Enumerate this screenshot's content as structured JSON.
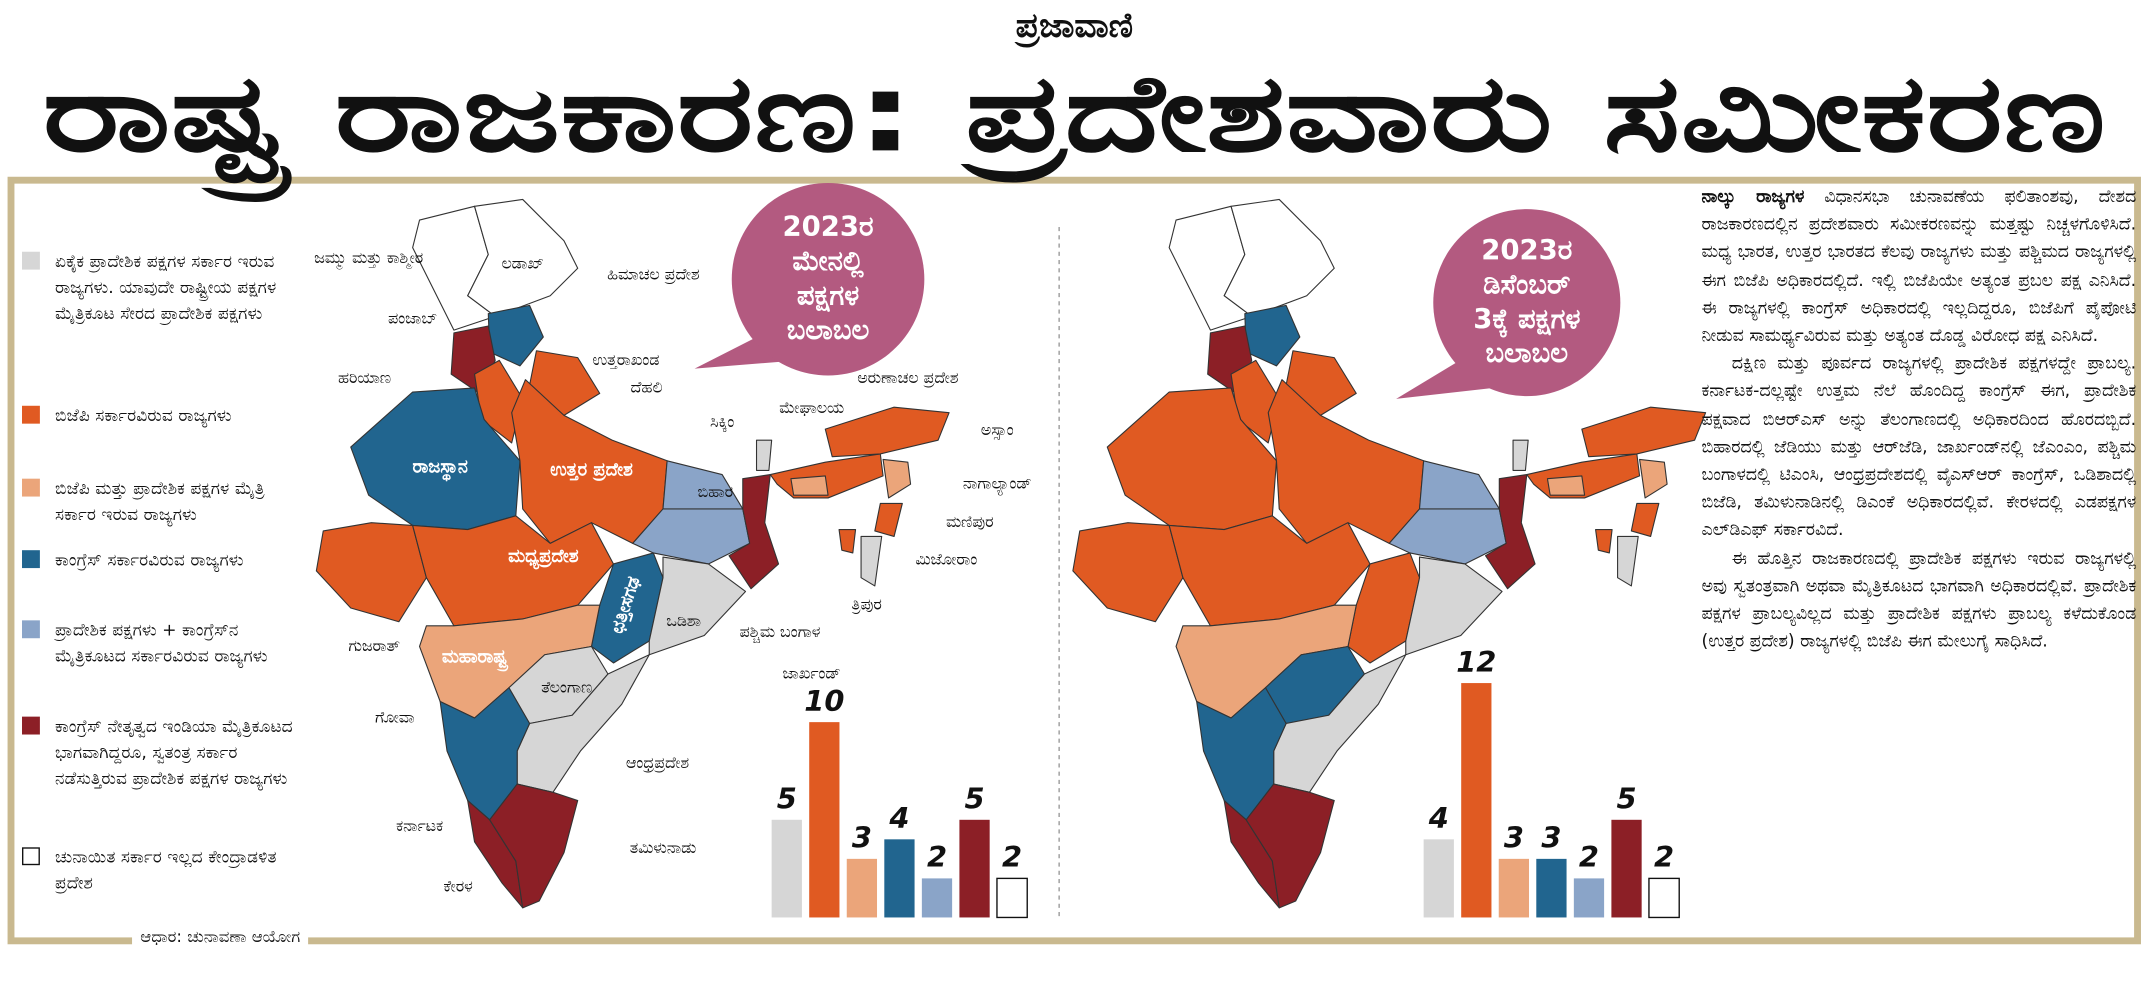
{
  "header": {
    "masthead": "ಪ್ರಜಾವಾಣಿ",
    "title": "ರಾಷ್ಟ್ರ ರಾಜಕಾರಣ: ಪ್ರದೇಶವಾರು ಸಮೀಕರಣ"
  },
  "legend": [
    "ಏಕೈಕ ಪ್ರಾದೇಶಿಕ ಪಕ್ಷಗಳ ಸರ್ಕಾರ ಇರುವ ರಾಜ್ಯಗಳು. ಯಾವುದೇ ರಾಷ್ಟ್ರೀಯ ಪಕ್ಷಗಳ ಮೈತ್ರಿಕೂಟ ಸೇರದ ಪ್ರಾದೇಶಿಕ ಪಕ್ಷಗಳು",
    "ಬಿಜೆಪಿ ಸರ್ಕಾರವಿರುವ ರಾಜ್ಯಗಳು",
    "ಬಿಜೆಪಿ ಮತ್ತು ಪ್ರಾದೇಶಿಕ ಪಕ್ಷಗಳ ಮೈತ್ರಿ ಸರ್ಕಾರ ಇರುವ ರಾಜ್ಯಗಳು",
    "ಕಾಂಗ್ರೆಸ್ ಸರ್ಕಾರವಿರುವ ರಾಜ್ಯಗಳು",
    "ಪ್ರಾದೇಶಿಕ ಪಕ್ಷಗಳು + ಕಾಂಗ್ರೆಸ್‌ನ ಮೈತ್ರಿಕೂಟದ ಸರ್ಕಾರವಿರುವ ರಾಜ್ಯಗಳು",
    "ಕಾಂಗ್ರೆಸ್ ನೇತೃತ್ವದ ಇಂಡಿಯಾ ಮೈತ್ರಿಕೂಟದ ಭಾಗವಾಗಿದ್ದರೂ, ಸ್ವತಂತ್ರ ಸರ್ಕಾರ ನಡೆಸುತ್ತಿರುವ ಪ್ರಾದೇಶಿಕ ಪಕ್ಷಗಳ ರಾಜ್ಯಗಳು",
    "ಚುನಾಯಿತ ಸರ್ಕಾರ ಇಲ್ಲದ ಕೇಂದ್ರಾಡಳಿತ ಪ್ರದೇಶ"
  ],
  "maps": [
    {
      "bubble": [
        "2023ರ",
        "ಮೇನಲ್ಲಿ",
        "ಪಕ್ಷಗಳ",
        "ಬಲಾಬಲ"
      ],
      "labels": [
        "ಲಡಾಖ್",
        "ಜಮ್ಮು ಮತ್ತು ಕಾಶ್ಮೀರ",
        "ಹಿಮಾಚಲ ಪ್ರದೇಶ",
        "ಪಂಜಾಬ್",
        "ಉತ್ತರಾಖಂಡ",
        "ಹರಿಯಾಣ",
        "ದೆಹಲಿ",
        "ರಾಜಸ್ಥಾನ",
        "ಉತ್ತರ ಪ್ರದೇಶ",
        "ಅರುಣಾಚಲ ಪ್ರದೇಶ",
        "ಸಿಕ್ಕಿಂ",
        "ಮೇಘಾಲಯ",
        "ಅಸ್ಸಾಂ",
        "ನಾಗಾಲ್ಯಾಂಡ್",
        "ಬಿಹಾರ",
        "ಮಣಿಪುರ",
        "ಮಿಜೋರಾಂ",
        "ತ್ರಿಪುರ",
        "ಮಧ್ಯಪ್ರದೇಶ",
        "ಗುಜರಾತ್",
        "ಛತ್ತೀಸಗಢ",
        "ಒಡಿಶಾ",
        "ಪಶ್ಚಿಮ ಬಂಗಾಳ",
        "ಜಾರ್ಖಂಡ್",
        "ಮಹಾರಾಷ್ಟ್ರ",
        "ತೆಲಂಗಾಣ",
        "ಗೋವಾ",
        "ಆಂಧ್ರಪ್ರದೇಶ",
        "ಕರ್ನಾಟಕ",
        "ತಮಿಳುನಾಡು",
        "ಕೇರಳ"
      ]
    },
    {
      "bubble": [
        "2023ರ",
        "ಡಿಸೆಂಬರ್",
        "3ಕ್ಕೆ ಪಕ್ಷಗಳ",
        "ಬಲಾಬಲ"
      ]
    }
  ],
  "chart_data": [
    {
      "type": "bar",
      "categories": [
        null,
        null,
        null,
        null,
        null,
        null,
        null
      ],
      "values": [
        5,
        10,
        3,
        4,
        2,
        5,
        2
      ],
      "colors": [
        "#d6d6d6",
        "#e05a22",
        "#eba57a",
        "#21658f",
        "#8aa4c8",
        "#8c1f26",
        "#ffffff"
      ]
    },
    {
      "type": "bar",
      "categories": [
        null,
        null,
        null,
        null,
        null,
        null,
        null
      ],
      "values": [
        4,
        12,
        3,
        3,
        2,
        5,
        2
      ],
      "colors": [
        "#d6d6d6",
        "#e05a22",
        "#eba57a",
        "#21658f",
        "#8aa4c8",
        "#8c1f26",
        "#ffffff"
      ]
    }
  ],
  "article": {
    "lead": "ನಾಲ್ಕು ರಾಜ್ಯಗಳ",
    "paragraphs": [
      "ವಿಧಾನಸಭಾ ಚುನಾವಣೆಯ ಫಲಿತಾಂಶವು, ದೇಶದ ರಾಜಕಾರಣದಲ್ಲಿನ ಪ್ರದೇಶವಾರು ಸಮೀಕರಣವನ್ನು ಮತ್ತಷ್ಟು ನಿಚ್ಚಳಗೊಳಿಸಿದೆ. ಮಧ್ಯ ಭಾರತ, ಉತ್ತರ ಭಾರತದ ಕೆಲವು ರಾಜ್ಯಗಳು ಮತ್ತು ಪಶ್ಚಿಮದ ರಾಜ್ಯಗಳಲ್ಲಿ ಈಗ ಬಿಜೆಪಿ ಅಧಿಕಾರದಲ್ಲಿದೆ. ಇಲ್ಲಿ ಬಿಜೆಪಿಯೇ ಅತ್ಯಂತ ಪ್ರಬಲ ಪಕ್ಷ ಎನಿಸಿದೆ. ಈ ರಾಜ್ಯಗಳಲ್ಲಿ ಕಾಂಗ್ರೆಸ್ ಅಧಿಕಾರದಲ್ಲಿ ಇಲ್ಲದಿದ್ದರೂ, ಬಿಜೆಪಿಗೆ ಪೈಪೋಟಿ ನೀಡುವ ಸಾಮರ್ಥ್ಯವಿರುವ ಮತ್ತು ಅತ್ಯಂತ ದೊಡ್ಡ ವಿರೋಧ ಪಕ್ಷ ಎನಿಸಿದೆ.",
      "ದಕ್ಷಿಣ ಮತ್ತು ಪೂರ್ವದ ರಾಜ್ಯಗಳಲ್ಲಿ ಪ್ರಾದೇಶಿಕ ಪಕ್ಷಗಳದ್ದೇ ಪ್ರಾಬಲ್ಯ. ಕರ್ನಾಟಕ-ದಲ್ಲಷ್ಟೇ ಉತ್ತಮ ನೆಲೆ ಹೊಂದಿದ್ದ ಕಾಂಗ್ರೆಸ್ ಈಗ, ಪ್ರಾದೇಶಿಕ ಪಕ್ಷವಾದ ಬಿಆರ್‌ಎಸ್ ಅನ್ನು ತೆಲಂಗಾಣದಲ್ಲಿ ಅಧಿಕಾರದಿಂದ ಹೊರದಬ್ಬಿದೆ. ಬಿಹಾರದಲ್ಲಿ ಜೆಡಿಯು ಮತ್ತು ಆರ್‌ಜೆಡಿ, ಜಾರ್ಖಂಡ್‌ನಲ್ಲಿ ಜೆಎಂಎಂ, ಪಶ್ಚಿಮ ಬಂಗಾಳದಲ್ಲಿ ಟಿಎಂಸಿ, ಆಂಧ್ರಪ್ರದೇಶದಲ್ಲಿ ವೈಎಸ್‌ಆರ್ ಕಾಂಗ್ರೆಸ್, ಒಡಿಶಾದಲ್ಲಿ ಬಿಜೆಡಿ, ತಮಿಳುನಾಡಿನಲ್ಲಿ ಡಿಎಂಕೆ ಅಧಿಕಾರದಲ್ಲಿವೆ. ಕೇರಳದಲ್ಲಿ ಎಡಪಕ್ಷಗಳ ಎಲ್‌ಡಿಎಫ್ ಸರ್ಕಾರವಿದೆ.",
      "ಈ ಹೊತ್ತಿನ ರಾಜಕಾರಣದಲ್ಲಿ ಪ್ರಾದೇಶಿಕ ಪಕ್ಷಗಳು ಇರುವ ರಾಜ್ಯಗಳಲ್ಲಿ ಅವು ಸ್ವತಂತ್ರವಾಗಿ ಅಥವಾ ಮೈತ್ರಿಕೂಟದ ಭಾಗವಾಗಿ ಅಧಿಕಾರದಲ್ಲಿವೆ. ಪ್ರಾದೇಶಿಕ ಪಕ್ಷಗಳ ಪ್ರಾಬಲ್ಯವಿಲ್ಲದ ಮತ್ತು ಪ್ರಾದೇಶಿಕ ಪಕ್ಷಗಳು ಪ್ರಾಬಲ್ಯ ಕಳೆದುಕೊಂಡ (ಉತ್ತರ ಪ್ರದೇಶ) ರಾಜ್ಯಗಳಲ್ಲಿ ಬಿಜೆಪಿ ಈಗ ಮೇಲುಗೈ ಸಾಧಿಸಿದೆ."
    ]
  },
  "source": "ಆಧಾರ: ಚುನಾವಣಾ ಆಯೋಗ"
}
